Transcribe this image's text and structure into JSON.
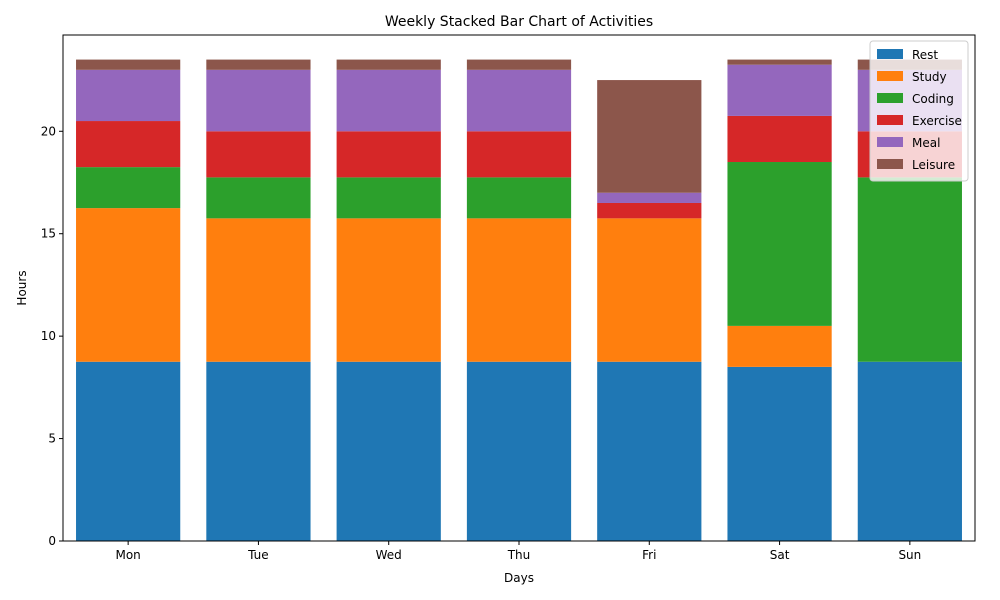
{
  "chart_data": {
    "type": "bar",
    "stacked": true,
    "title": "Weekly Stacked Bar Chart of Activities",
    "xlabel": "Days",
    "ylabel": "Hours",
    "categories": [
      "Mon",
      "Tue",
      "Wed",
      "Thu",
      "Fri",
      "Sat",
      "Sun"
    ],
    "ylim": [
      0,
      24.7
    ],
    "yticks": [
      0,
      5,
      10,
      15,
      20
    ],
    "grid": false,
    "legend_position": "top-right",
    "series": [
      {
        "name": "Rest",
        "color": "#1f77b4",
        "values": [
          8.75,
          8.75,
          8.75,
          8.75,
          8.75,
          8.5,
          8.75
        ]
      },
      {
        "name": "Study",
        "color": "#ff7f0e",
        "values": [
          7.5,
          7.0,
          7.0,
          7.0,
          7.0,
          2.0,
          0
        ]
      },
      {
        "name": "Coding",
        "color": "#2ca02c",
        "values": [
          2.0,
          2.0,
          2.0,
          2.0,
          0,
          8.0,
          9.0
        ]
      },
      {
        "name": "Exercise",
        "color": "#d62728",
        "values": [
          2.25,
          2.25,
          2.25,
          2.25,
          0.75,
          2.25,
          2.25
        ]
      },
      {
        "name": "Meal",
        "color": "#9467bd",
        "values": [
          2.5,
          3.0,
          3.0,
          3.0,
          0.5,
          2.5,
          3.0
        ]
      },
      {
        "name": "Leisure",
        "color": "#8c564b",
        "values": [
          0.5,
          0.5,
          0.5,
          0.5,
          5.5,
          0.25,
          0.5
        ]
      }
    ]
  }
}
